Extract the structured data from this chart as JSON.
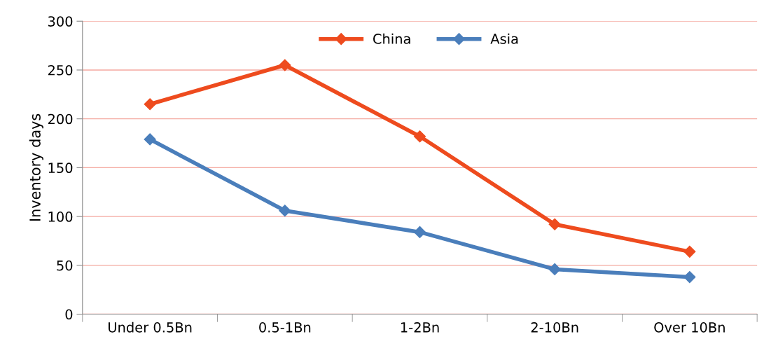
{
  "chart_data": {
    "type": "line",
    "ylabel": "Inventory days",
    "categories": [
      "Under 0.5Bn",
      "0.5-1Bn",
      "1-2Bn",
      "2-10Bn",
      "Over 10Bn"
    ],
    "series": [
      {
        "name": "China",
        "color": "#ee4b1e",
        "values": [
          215,
          255,
          182,
          92,
          64
        ]
      },
      {
        "name": "Asia",
        "color": "#4a7ebb",
        "values": [
          179,
          106,
          84,
          46,
          38
        ]
      }
    ],
    "ylim": [
      0,
      300
    ],
    "yticks": [
      0,
      50,
      100,
      150,
      200,
      250,
      300
    ],
    "grid": "y",
    "legend": "top",
    "marker": "diamond",
    "line_style": "solid"
  }
}
